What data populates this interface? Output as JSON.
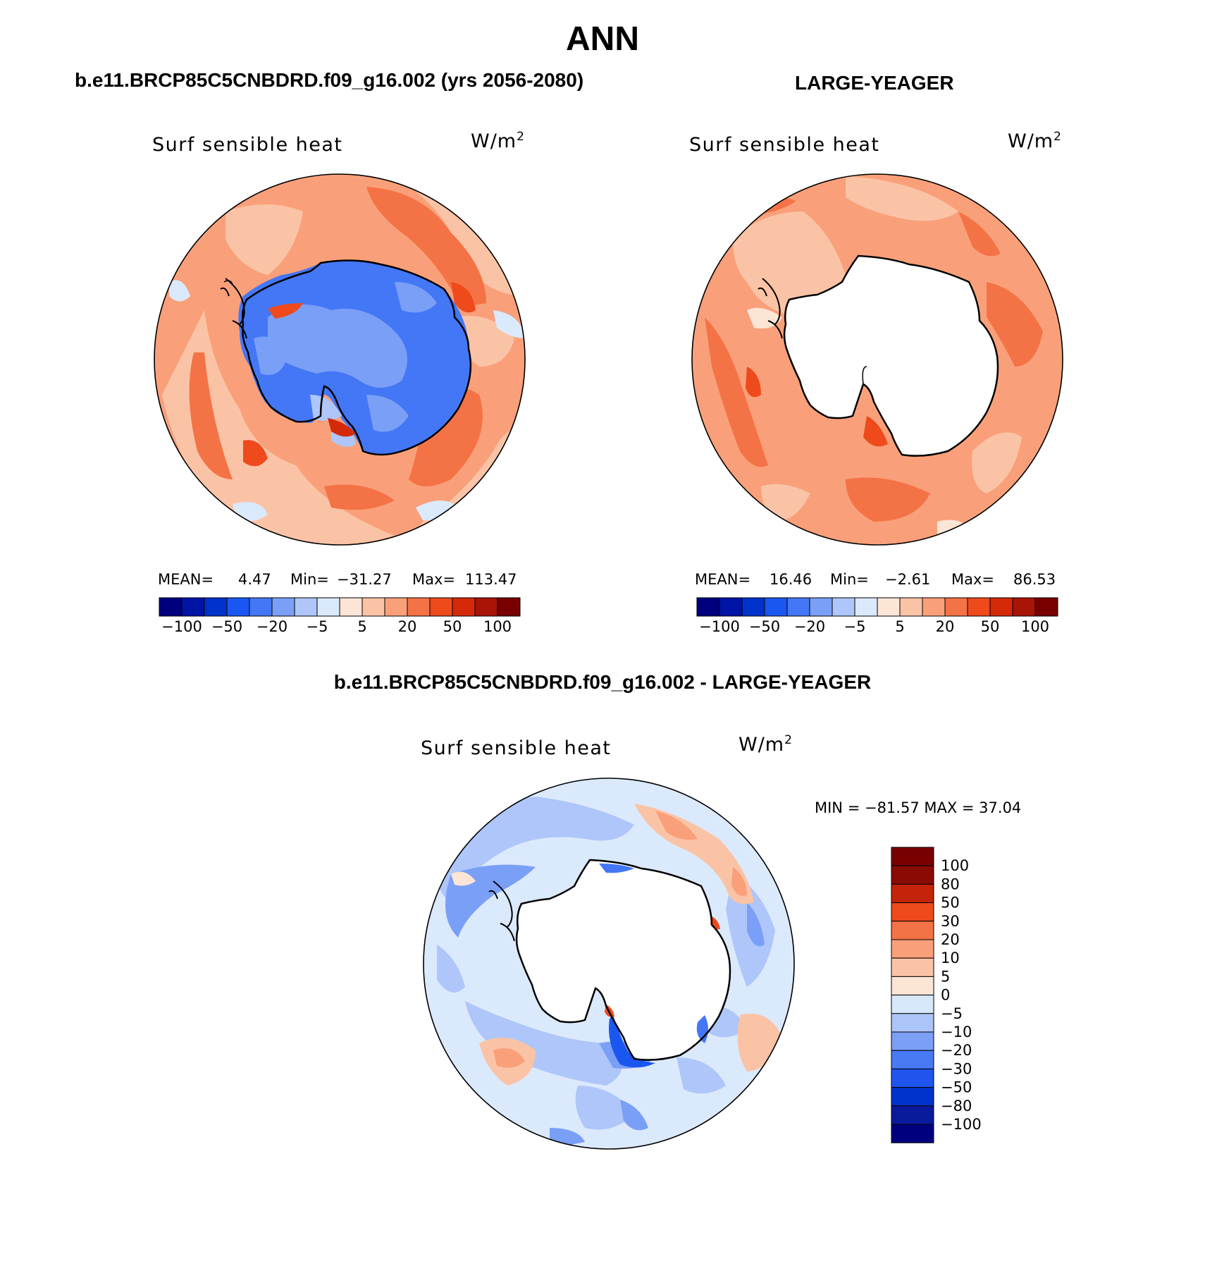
{
  "title": "ANN",
  "case_left": "b.e11.BRCP85C5CNBDRD.f09_g16.002 (yrs 2056-2080)",
  "case_right": "LARGE-YEAGER",
  "case_diff": "b.e11.BRCP85C5CNBDRD.f09_g16.002 - LARGE-YEAGER",
  "panels": [
    {
      "variable": "Surf sensible heat",
      "units_base": "W/m",
      "units_exp": "2",
      "mean_label": "MEAN=",
      "mean_value": "4.47",
      "min_label": "Min=",
      "min_value": "−31.27",
      "max_label": "Max=",
      "max_value": "113.47"
    },
    {
      "variable": "Surf sensible heat",
      "units_base": "W/m",
      "units_exp": "2",
      "mean_label": "MEAN=",
      "mean_value": "16.46",
      "min_label": "Min=",
      "min_value": "−2.61",
      "max_label": "Max=",
      "max_value": "86.53"
    }
  ],
  "diff_panel": {
    "variable": "Surf sensible heat",
    "units_base": "W/m",
    "units_exp": "2",
    "minmax": "MIN = −81.57 MAX =   37.04"
  },
  "horizontal_colorbar": {
    "colors": [
      "#00007f",
      "#0014a6",
      "#0033cc",
      "#1a56f0",
      "#4477f5",
      "#7a9ff7",
      "#aec6f9",
      "#dbe9fc",
      "#fde5d6",
      "#fbc3a6",
      "#f9a07a",
      "#f47346",
      "#ee4a1c",
      "#d42a08",
      "#a81406",
      "#780000"
    ],
    "labels": [
      "−100",
      "−50",
      "−20",
      "−5",
      "5",
      "20",
      "50",
      "100"
    ]
  },
  "vertical_colorbar": {
    "colors": [
      "#00007f",
      "#0a1a9c",
      "#0033cc",
      "#1f55ee",
      "#4a79f4",
      "#7b9ff5",
      "#acc5f8",
      "#d8e8fb",
      "#fde5d6",
      "#fbc3a6",
      "#f9a07a",
      "#f47346",
      "#ee4a1c",
      "#c42409",
      "#8a0b04",
      "#780000"
    ],
    "labels": [
      "100",
      "80",
      "50",
      "30",
      "20",
      "10",
      "5",
      "0",
      "−5",
      "−10",
      "−20",
      "−30",
      "−50",
      "−80",
      "−100"
    ]
  },
  "icons": {
    "map_left": "polar-map-icon",
    "map_right": "polar-map-icon",
    "map_diff": "polar-map-icon"
  }
}
